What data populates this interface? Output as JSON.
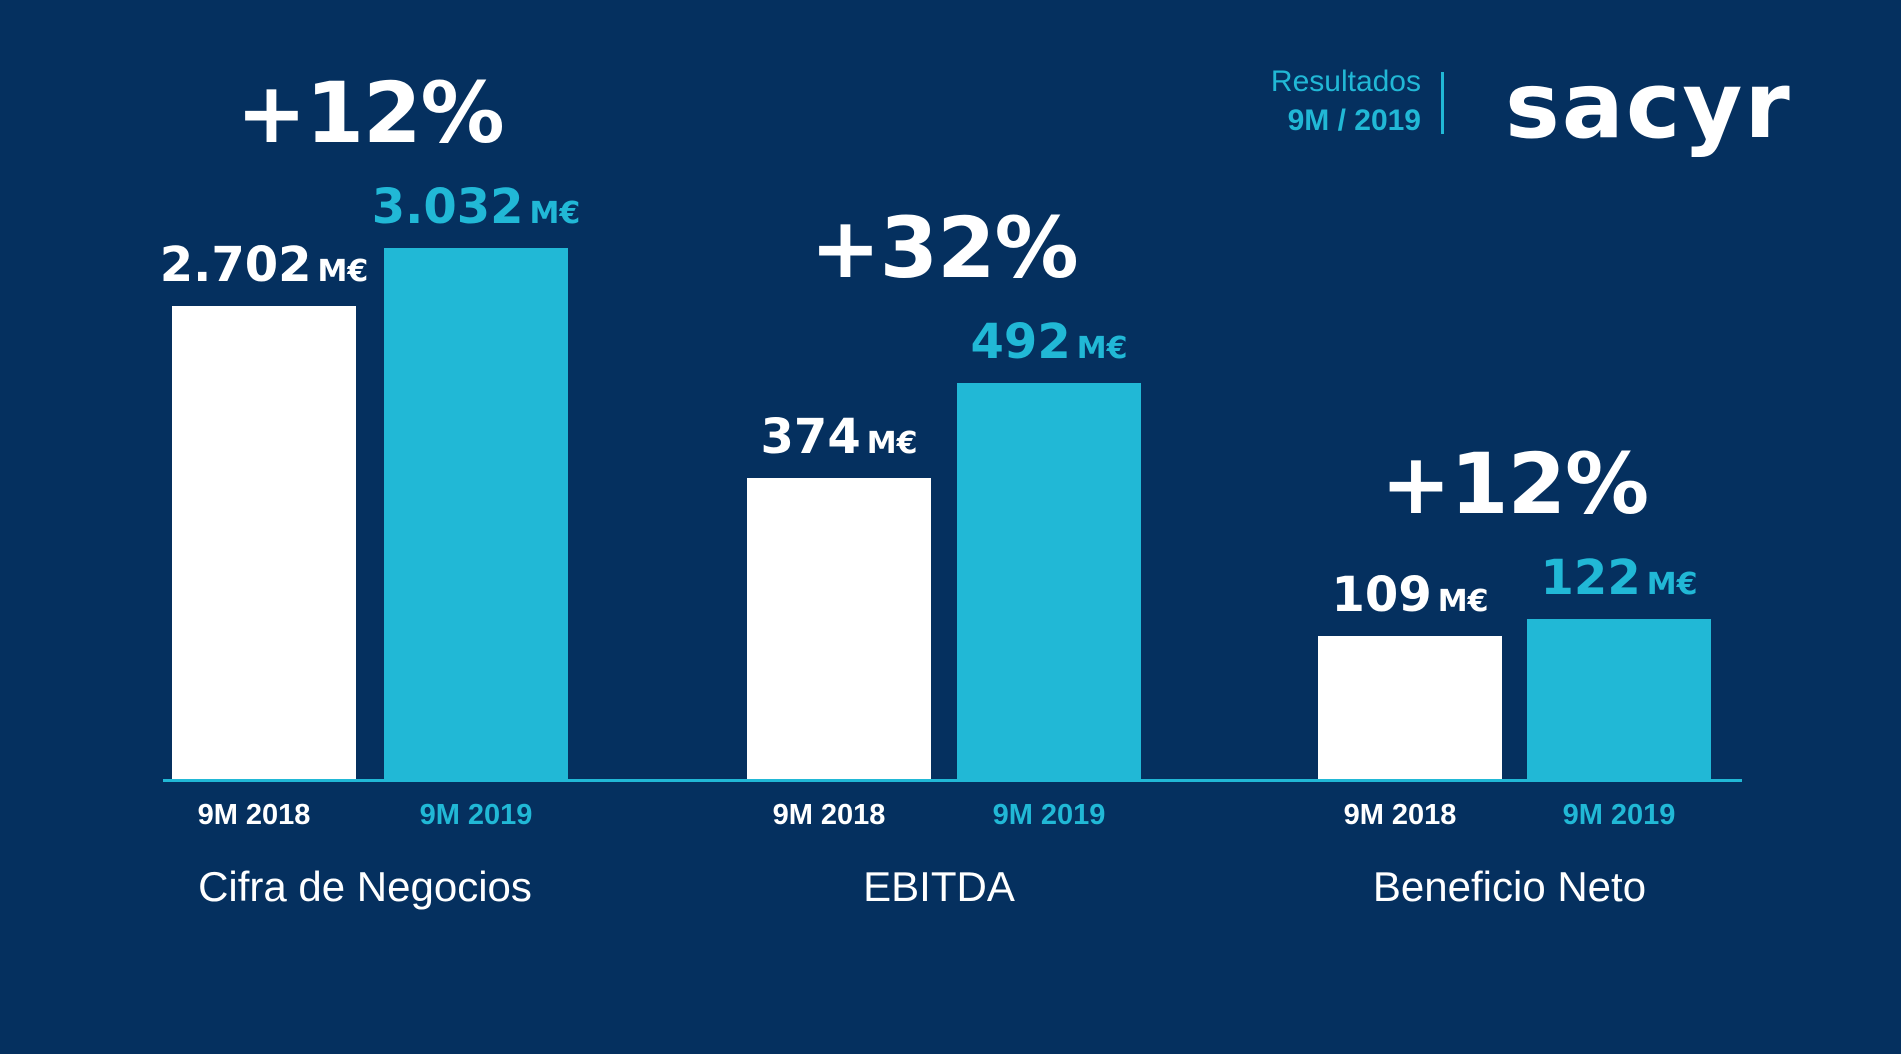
{
  "header": {
    "line1": "Resultados",
    "line2": "9M / 2019",
    "logo_text": "sacyr"
  },
  "colors": {
    "background": "#05305f",
    "accent": "#21b8d6",
    "previous": "#ffffff"
  },
  "chart_data": {
    "type": "bar",
    "title": "",
    "unit": "M€",
    "series_names": [
      "9M 2018",
      "9M 2019"
    ],
    "groups": [
      {
        "category": "Cifra de Negocios",
        "values": [
          2702,
          3032
        ],
        "value_labels": [
          "2.702",
          "3.032"
        ],
        "change": "+12%"
      },
      {
        "category": "EBITDA",
        "values": [
          374,
          492
        ],
        "value_labels": [
          "374",
          "492"
        ],
        "change": "+32%"
      },
      {
        "category": "Beneficio Neto",
        "values": [
          109,
          122
        ],
        "value_labels": [
          "109",
          "122"
        ],
        "change": "+12%"
      }
    ],
    "tick_labels": [
      "9M 2018",
      "9M 2019"
    ],
    "grid": false,
    "legend": "none"
  }
}
